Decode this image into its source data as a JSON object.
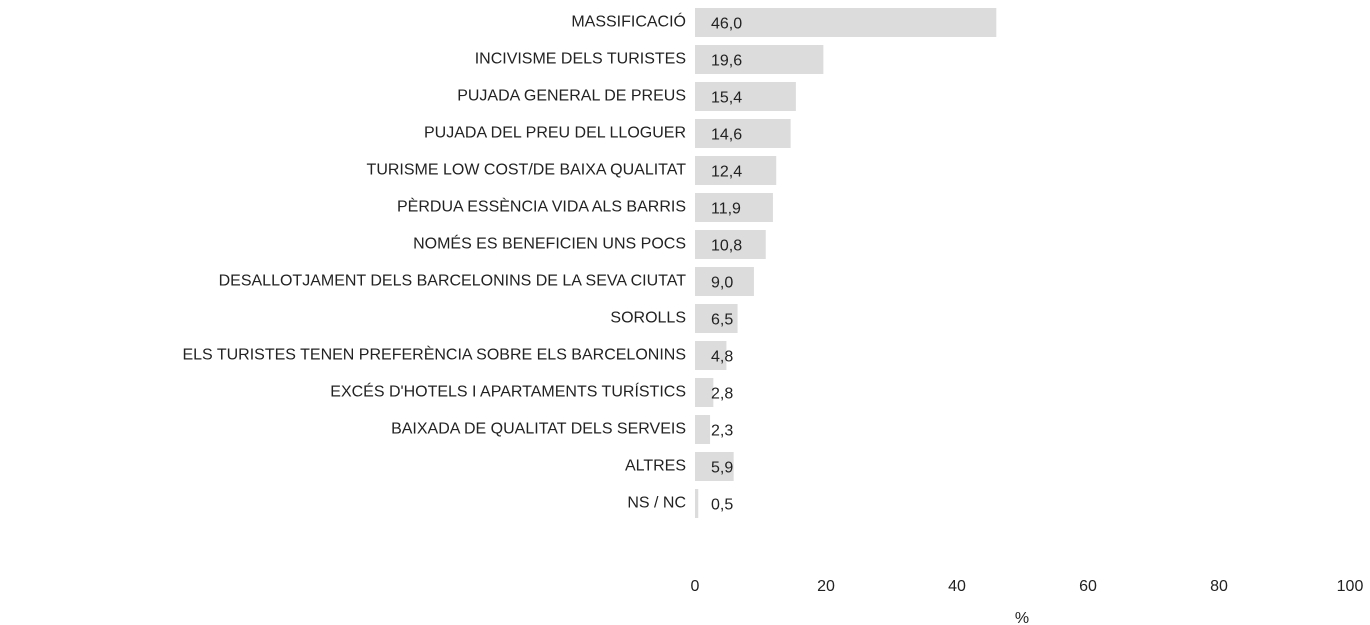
{
  "chart_data": {
    "type": "bar",
    "orientation": "horizontal",
    "categories": [
      "MASSIFICACIÓ",
      "INCIVISME DELS TURISTES",
      "PUJADA GENERAL DE PREUS",
      "PUJADA DEL PREU DEL LLOGUER",
      "TURISME LOW COST/DE BAIXA QUALITAT",
      "PÈRDUA ESSÈNCIA VIDA ALS BARRIS",
      "NOMÉS ES BENEFICIEN UNS POCS",
      "DESALLOTJAMENT DELS BARCELONINS DE LA SEVA CIUTAT",
      "SOROLLS",
      "ELS TURISTES TENEN PREFERÈNCIA SOBRE ELS BARCELONINS",
      "EXCÉS D'HOTELS I APARTAMENTS TURÍSTICS",
      "BAIXADA DE QUALITAT DELS SERVEIS",
      "ALTRES",
      "NS / NC"
    ],
    "values": [
      46.0,
      19.6,
      15.4,
      14.6,
      12.4,
      11.9,
      10.8,
      9.0,
      6.5,
      4.8,
      2.8,
      2.3,
      5.9,
      0.5
    ],
    "value_labels": [
      "46,0",
      "19,6",
      "15,4",
      "14,6",
      "12,4",
      "11,9",
      "10,8",
      "9,0",
      "6,5",
      "4,8",
      "2,8",
      "2,3",
      "5,9",
      "0,5"
    ],
    "color": "#dcdcdc",
    "xlim": [
      0,
      100
    ],
    "xticks": [
      0,
      20,
      40,
      60,
      80,
      100
    ],
    "xlabel": "%",
    "grid": false
  }
}
